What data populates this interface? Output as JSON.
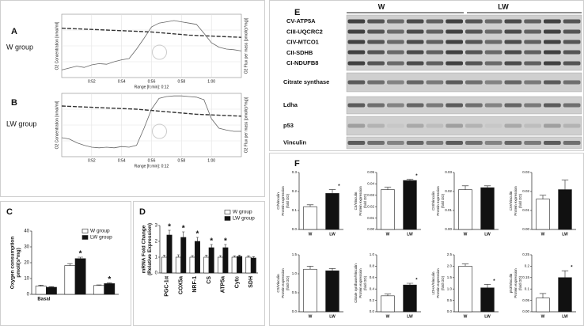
{
  "chart_data": [
    {
      "panel": "A",
      "group_label": "W group",
      "type": "line",
      "ylabel": "O2 Concentration [nmol/ml]",
      "y2label": "O2 Flux per mass [pmol/(s*mg)]",
      "xlabel": "Range [h:min]: 0:12",
      "x": [
        50,
        50.5,
        51,
        51.5,
        52,
        52.5,
        53,
        53.5,
        54,
        54.5,
        55,
        55.5,
        56,
        56.5,
        57,
        57.5,
        58,
        58.5,
        59,
        59.5,
        60,
        60.5,
        61,
        61.5,
        62
      ],
      "xlim": [
        50,
        62
      ],
      "xticks": [
        {
          "value": 52,
          "label": "0:52"
        },
        {
          "value": 54,
          "label": "0:54"
        },
        {
          "value": 56,
          "label": "0:56"
        },
        {
          "value": 58,
          "label": "0:58"
        },
        {
          "value": 60,
          "label": "1:00"
        }
      ],
      "ylim": [
        0,
        100
      ],
      "y2lim": [
        0,
        100
      ],
      "series": [
        {
          "color": "#333333",
          "dash": true,
          "values": [
            78,
            77.5,
            77,
            76.5,
            76,
            75.5,
            75,
            74.5,
            74,
            73.5,
            73,
            72.5,
            72,
            71,
            70,
            69,
            68,
            67,
            66.5,
            66,
            65.5,
            65,
            64.5,
            64,
            63.5
          ]
        },
        {
          "color": "#666666",
          "axis": "y2",
          "values": [
            12,
            15,
            18,
            16,
            20,
            22,
            21,
            25,
            28,
            30,
            45,
            62,
            80,
            86,
            88,
            90,
            88,
            86,
            84,
            70,
            55,
            48,
            45,
            44,
            42
          ]
        }
      ]
    },
    {
      "panel": "B",
      "group_label": "LW group",
      "type": "line",
      "ylabel": "O2 Concentration [nmol/ml]",
      "y2label": "O2 Flux per mass [pmol/(s*mg)]",
      "xlabel": "Range [h:min]: 0:12",
      "x": [
        50,
        50.5,
        51,
        51.5,
        52,
        52.5,
        53,
        53.5,
        54,
        54.5,
        55,
        55.5,
        56,
        56.5,
        57,
        57.5,
        58,
        58.5,
        59,
        59.5,
        60,
        60.5,
        61,
        61.5,
        62
      ],
      "xlim": [
        50,
        62
      ],
      "xticks": [
        {
          "value": 52,
          "label": "0:52"
        },
        {
          "value": 54,
          "label": "0:54"
        },
        {
          "value": 56,
          "label": "0:56"
        },
        {
          "value": 58,
          "label": "0:58"
        },
        {
          "value": 60,
          "label": "1:00"
        }
      ],
      "ylim": [
        0,
        100
      ],
      "y2lim": [
        0,
        100
      ],
      "series": [
        {
          "color": "#333333",
          "dash": true,
          "values": [
            80,
            79.5,
            79,
            78.5,
            78,
            77.5,
            77,
            76.5,
            76,
            75.5,
            75,
            74,
            73,
            72,
            71,
            70,
            69,
            68,
            67,
            66.5,
            66,
            65.5,
            65,
            64.5,
            64
          ]
        },
        {
          "color": "#666666",
          "axis": "y2",
          "values": [
            30,
            28,
            22,
            18,
            15,
            14,
            15,
            14,
            16,
            15,
            18,
            45,
            75,
            92,
            95,
            96,
            96,
            95,
            94,
            90,
            60,
            45,
            42,
            40,
            40
          ]
        }
      ]
    },
    {
      "panel": "C",
      "type": "bar",
      "ylabel": [
        "Oxygen consumption",
        "pmol/(s*mg)"
      ],
      "categories": [
        "Basal",
        null,
        null
      ],
      "ylim": [
        0,
        40
      ],
      "yticks": [
        0,
        10,
        20,
        30,
        40
      ],
      "series": [
        {
          "name": "W group",
          "color": "#ffffff",
          "values": [
            5.2,
            18.2,
            5.6
          ],
          "errors": [
            0.6,
            1.2,
            0.4
          ]
        },
        {
          "name": "LW group",
          "color": "#111111",
          "values": [
            4.5,
            22.6,
            6.8
          ],
          "errors": [
            0.4,
            0.9,
            0.4
          ]
        }
      ],
      "significance": [
        null,
        "*",
        "*"
      ]
    },
    {
      "panel": "D",
      "type": "bar",
      "ylabel": [
        "mRNA Fold Change",
        "(Relative Expression)"
      ],
      "categories": [
        "PGC-1α",
        "COX5a",
        "NRF-1",
        "CS",
        "ATP5a",
        "Cytc",
        "SDH"
      ],
      "ylim": [
        0,
        3
      ],
      "yticks": [
        0,
        1,
        2,
        3
      ],
      "series": [
        {
          "name": "W group",
          "color": "#ffffff",
          "values": [
            1,
            1,
            1,
            1,
            1,
            1,
            1
          ],
          "errors": [
            0.12,
            0.15,
            0.1,
            0.12,
            0.1,
            0.08,
            0.08
          ]
        },
        {
          "name": "LW group",
          "color": "#111111",
          "values": [
            2.4,
            2.25,
            2.0,
            1.6,
            1.6,
            1.05,
            0.95
          ],
          "errors": [
            0.3,
            0.35,
            0.25,
            0.2,
            0.2,
            0.08,
            0.08
          ]
        }
      ],
      "significance": [
        "*",
        "*",
        "*",
        "*",
        "*",
        null,
        null
      ]
    },
    {
      "type": "bar",
      "ylabel": [
        "CI/Vinculin",
        "Protein expression",
        "(fold OD)"
      ],
      "categories": [
        "W",
        "LW"
      ],
      "ylim": [
        0,
        0.3
      ],
      "yticks": [
        {
          "value": 0,
          "label": "0.0"
        },
        0.1,
        0.2,
        0.3
      ],
      "values": [
        0.12,
        0.19
      ],
      "errors": [
        0.01,
        0.02
      ],
      "colors": [
        "#ffffff",
        "#111111"
      ],
      "significance": [
        null,
        "*"
      ]
    },
    {
      "type": "bar",
      "ylabel": [
        "CII/Vinculin",
        "Protein expression",
        "(fold OD)"
      ],
      "categories": [
        "W",
        "LW"
      ],
      "ylim": [
        0,
        0.05
      ],
      "yticks": [
        {
          "value": 0,
          "label": "0.00"
        },
        0.01,
        0.02,
        0.03,
        0.04,
        0.05
      ],
      "values": [
        0.035,
        0.043
      ],
      "errors": [
        0.002,
        0.001
      ],
      "colors": [
        "#ffffff",
        "#111111"
      ],
      "significance": [
        null,
        "*"
      ]
    },
    {
      "type": "bar",
      "ylabel": [
        "CIII/Vinculin",
        "Protein expression",
        "(fold OD)"
      ],
      "categories": [
        "W",
        "LW"
      ],
      "ylim": [
        0,
        0.03
      ],
      "yticks": [
        {
          "value": 0,
          "label": "0.00"
        },
        0.01,
        0.02,
        0.03
      ],
      "values": [
        0.021,
        0.022
      ],
      "errors": [
        0.002,
        0.001
      ],
      "colors": [
        "#ffffff",
        "#111111"
      ],
      "significance": [
        null,
        null
      ]
    },
    {
      "type": "bar",
      "ylabel": [
        "CIV/Vinculin",
        "Protein expression",
        "(fold OD)"
      ],
      "categories": [
        "W",
        "LW"
      ],
      "ylim": [
        0,
        0.03
      ],
      "yticks": [
        {
          "value": 0,
          "label": "0.00"
        },
        0.01,
        0.02,
        0.03
      ],
      "values": [
        0.016,
        0.021
      ],
      "errors": [
        0.002,
        0.005
      ],
      "colors": [
        "#ffffff",
        "#111111"
      ],
      "significance": [
        null,
        null
      ]
    },
    {
      "type": "bar",
      "ylabel": [
        "CS/Vinculin",
        "Protein expression",
        "(fold OD)"
      ],
      "categories": [
        "W",
        "LW"
      ],
      "ylim": [
        0,
        1.5
      ],
      "yticks": [
        {
          "value": 0,
          "label": "0.0"
        },
        0.5,
        {
          "value": 1,
          "label": "1.0"
        },
        1.5
      ],
      "values": [
        1.12,
        1.08
      ],
      "errors": [
        0.08,
        0.06
      ],
      "colors": [
        "#ffffff",
        "#111111"
      ],
      "significance": [
        null,
        null
      ]
    },
    {
      "type": "bar",
      "ylabel": [
        "Citrate synthase/Vinculin",
        "Protein expression",
        "(fold OD)"
      ],
      "categories": [
        "W",
        "LW"
      ],
      "ylim": [
        0,
        1
      ],
      "yticks": [
        {
          "value": 0,
          "label": "0.0"
        },
        0.2,
        0.4,
        0.6,
        0.8,
        {
          "value": 1,
          "label": "1.0"
        }
      ],
      "values": [
        0.28,
        0.47
      ],
      "errors": [
        0.03,
        0.03
      ],
      "colors": [
        "#ffffff",
        "#111111"
      ],
      "significance": [
        null,
        "*"
      ]
    },
    {
      "type": "bar",
      "ylabel": [
        "LDHA/Vinculin",
        "Protein expression",
        "(fold OD)"
      ],
      "categories": [
        "W",
        "LW"
      ],
      "ylim": [
        0,
        2.5
      ],
      "yticks": [
        {
          "value": 0,
          "label": "0.0"
        },
        0.5,
        {
          "value": 1,
          "label": "1.0"
        },
        1.5,
        {
          "value": 2,
          "label": "2.0"
        },
        2.5
      ],
      "values": [
        2.0,
        1.05
      ],
      "errors": [
        0.1,
        0.15
      ],
      "colors": [
        "#ffffff",
        "#111111"
      ],
      "significance": [
        null,
        "*"
      ]
    },
    {
      "type": "bar",
      "ylabel": [
        "p53/Vinculin",
        "Protein expression",
        "(fold OD)"
      ],
      "categories": [
        "W",
        "LW"
      ],
      "ylim": [
        0,
        0.25
      ],
      "yticks": [
        {
          "value": 0,
          "label": "0.00"
        },
        0.05,
        0.1,
        0.15,
        0.2,
        0.25
      ],
      "values": [
        0.06,
        0.15
      ],
      "errors": [
        0.02,
        0.03
      ],
      "colors": [
        "#ffffff",
        "#111111"
      ],
      "significance": [
        null,
        "*"
      ]
    }
  ],
  "blot": {
    "panel": "E",
    "groups": [
      "W",
      "LW"
    ],
    "oxphos_labels": [
      "CV-ATP5A",
      "CIII-UQCRC2",
      "CIV-MTCO1",
      "CII-SDHB",
      "CI-NDUFB8"
    ],
    "proteins": [
      "Citrate synthase",
      "Ldha",
      "p53",
      "Vinculin"
    ]
  },
  "quant": {
    "panel": "F"
  }
}
